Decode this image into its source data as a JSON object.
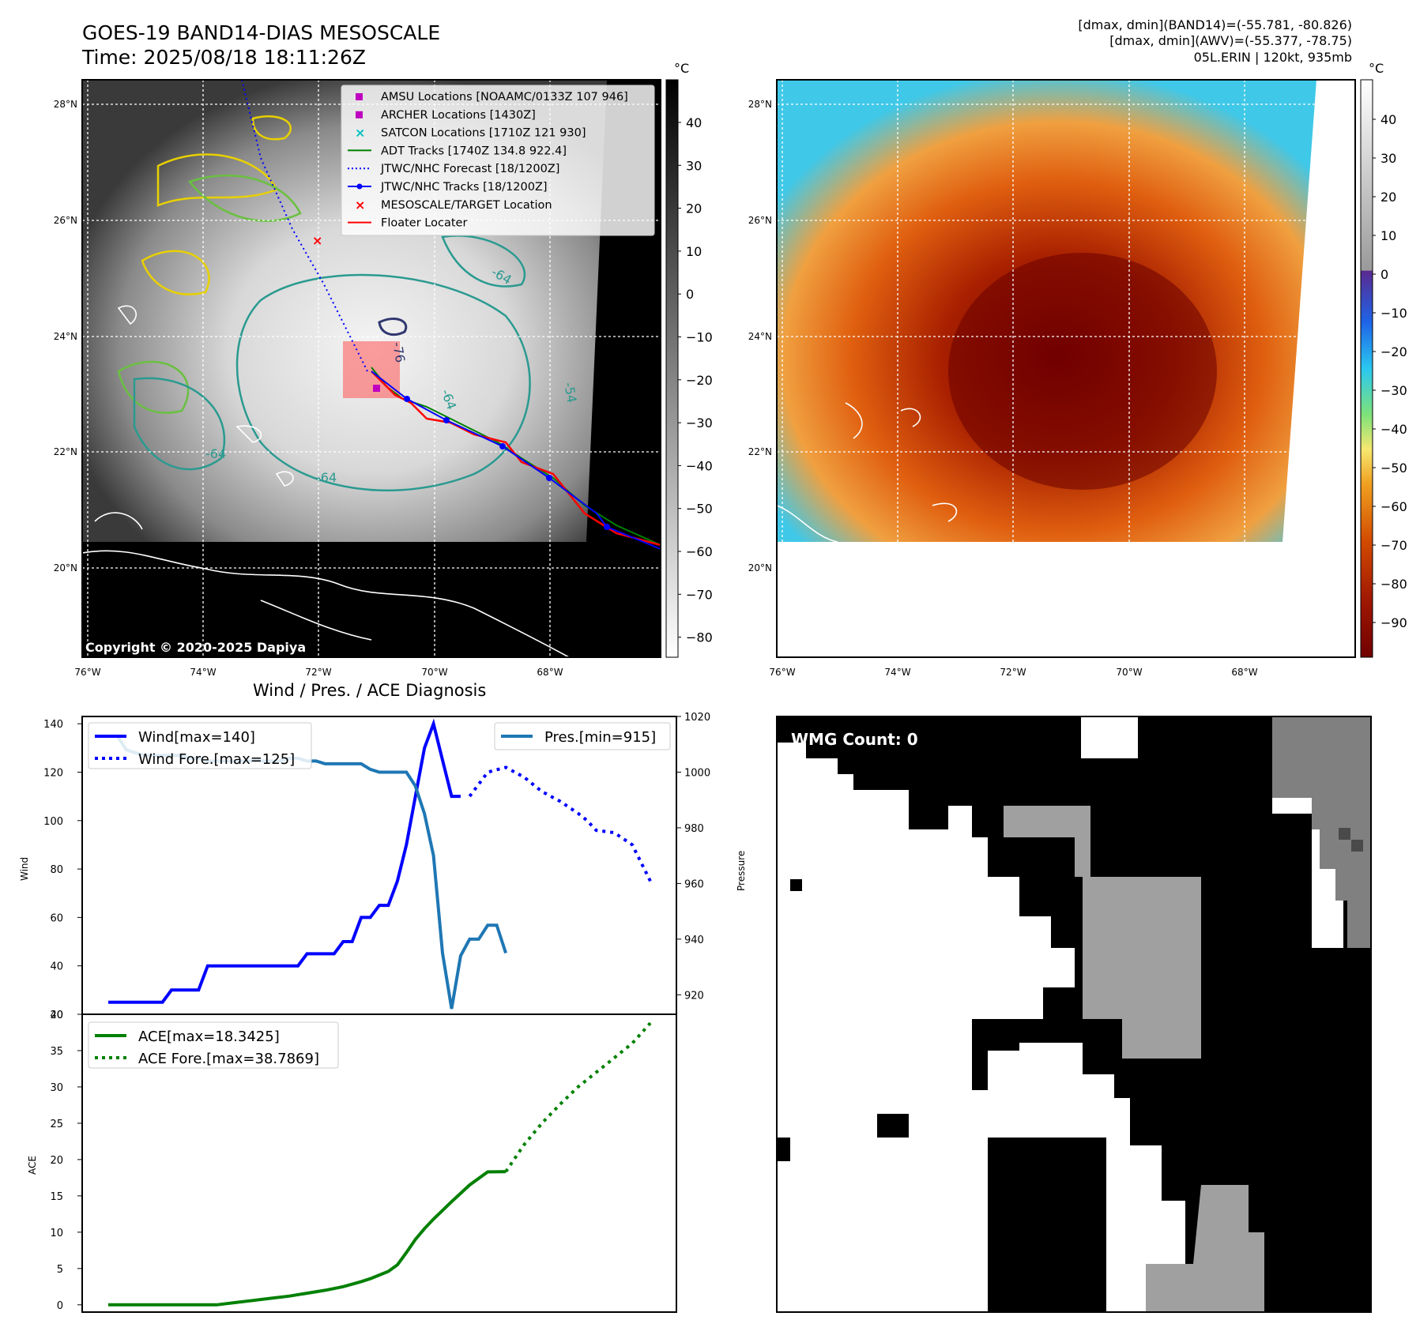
{
  "header": {
    "title": "GOES-19 BAND14-DIAS MESOSCALE",
    "time": "Time: 2025/08/18 18:11:26Z",
    "stats": [
      "[dmax, dmin](BAND14)=(-55.781, -80.826)",
      "[dmax, dmin](AWV)=(-55.377, -78.75)",
      "05L.ERIN | 120kt, 935mb"
    ]
  },
  "map": {
    "lat_labels": [
      "28°N",
      "26°N",
      "24°N",
      "22°N",
      "20°N"
    ],
    "lon_labels": [
      "76°W",
      "74°W",
      "72°W",
      "70°W",
      "68°W"
    ],
    "copyright": "Copyright © 2020-2025 Dapiya",
    "colorbar_unit": "°C",
    "legend": [
      {
        "label": "AMSU Locations [NOAAMC/0133Z 107 946]",
        "color": "#c000c0",
        "marker": "square"
      },
      {
        "label": "ARCHER Locations [1430Z]",
        "color": "#c000c0",
        "marker": "square"
      },
      {
        "label": "SATCON Locations [1710Z 121 930]",
        "color": "#00c0c0",
        "marker": "x"
      },
      {
        "label": "ADT Tracks [1740Z 134.8 922.4]",
        "color": "#008000",
        "marker": "line"
      },
      {
        "label": "JTWC/NHC Forecast [18/1200Z]",
        "color": "#0000ff",
        "marker": "dotted"
      },
      {
        "label": "JTWC/NHC Tracks [18/1200Z]",
        "color": "#0000ff",
        "marker": "line-dot"
      },
      {
        "label": "MESOSCALE/TARGET Location",
        "color": "#ff0000",
        "marker": "x"
      },
      {
        "label": "Floater Locater",
        "color": "#ff0000",
        "marker": "line"
      }
    ],
    "contour_labels": [
      "-76",
      "-64",
      "-64",
      "-64",
      "-54",
      "-64"
    ],
    "gray_colorbar_ticks": [
      "40",
      "30",
      "20",
      "10",
      "0",
      "−10",
      "−20",
      "−30",
      "−40",
      "−50",
      "−60",
      "−70",
      "−80"
    ],
    "color_colorbar_ticks": [
      "40",
      "30",
      "20",
      "10",
      "0",
      "−10",
      "−20",
      "−30",
      "−40",
      "−50",
      "−60",
      "−70",
      "−80",
      "−90"
    ]
  },
  "wmg": {
    "label": "WMG Count: 0"
  },
  "chart_data": [
    {
      "type": "line",
      "title": "Wind / Pres. / ACE Diagnosis",
      "ylabel": "Wind",
      "y2label": "Pressure",
      "ylim": [
        20,
        143
      ],
      "y2lim": [
        913,
        1020
      ],
      "yticks": [
        "20",
        "40",
        "60",
        "80",
        "100",
        "120",
        "140"
      ],
      "y2ticks": [
        "920",
        "940",
        "960",
        "980",
        "1000",
        "1020"
      ],
      "legend_left": [
        "Wind[max=140]",
        "Wind Fore.[max=125]"
      ],
      "legend_right": [
        "Pres.[min=915]"
      ],
      "series": [
        {
          "name": "Wind[max=140]",
          "color": "#0000ff",
          "style": "solid",
          "x": [
            0,
            1,
            2,
            3,
            4,
            5,
            6,
            7,
            8,
            9,
            10,
            11,
            12,
            13,
            14,
            15,
            16,
            17,
            18,
            19,
            20,
            21,
            22,
            23,
            24,
            25,
            26,
            27,
            28,
            29,
            30,
            31,
            32,
            33,
            34,
            35,
            36,
            37,
            38,
            39
          ],
          "values": [
            25,
            25,
            25,
            25,
            25,
            25,
            25,
            30,
            30,
            30,
            30,
            40,
            40,
            40,
            40,
            40,
            40,
            40,
            40,
            40,
            40,
            40,
            45,
            45,
            45,
            45,
            50,
            50,
            60,
            60,
            65,
            65,
            75,
            90,
            110,
            130,
            140,
            125,
            110,
            110
          ]
        },
        {
          "name": "Wind Fore.[max=125]",
          "color": "#0000ff",
          "style": "dotted",
          "x": [
            40,
            41,
            42,
            44,
            46,
            48,
            50,
            52,
            53,
            54,
            56,
            58,
            60
          ],
          "values": [
            110,
            115,
            120,
            122,
            118,
            112,
            108,
            103,
            100,
            96,
            95,
            90,
            75
          ]
        },
        {
          "name": "Pres.[min=915]",
          "color": "#1f77b4",
          "style": "solid",
          "axis": "right",
          "x": [
            0,
            1,
            2,
            3,
            4,
            5,
            6,
            7,
            8,
            9,
            10,
            11,
            12,
            13,
            14,
            15,
            16,
            17,
            18,
            19,
            20,
            21,
            22,
            23,
            24,
            25,
            26,
            27,
            28,
            29,
            30,
            31,
            32,
            33,
            34,
            35,
            36,
            37,
            38,
            39,
            40,
            41,
            42,
            43,
            44
          ],
          "values": [
            1013,
            1013,
            1008,
            1007,
            1006,
            1006,
            1006,
            1006,
            1006,
            1005,
            1005,
            1004,
            1004,
            1004,
            1004,
            1004,
            1004,
            1004,
            1004,
            1004,
            1005,
            1005,
            1004,
            1004,
            1003,
            1003,
            1003,
            1003,
            1003,
            1001,
            1000,
            1000,
            1000,
            1000,
            995,
            985,
            970,
            935,
            915,
            934,
            940,
            940,
            945,
            945,
            935
          ]
        }
      ],
      "x_forecast_note": "forecast starts at index 44 of 60"
    },
    {
      "type": "line",
      "ylabel": "ACE",
      "ylim": [
        -1,
        40
      ],
      "yticks": [
        "0",
        "5",
        "10",
        "15",
        "20",
        "25",
        "30",
        "35",
        "40"
      ],
      "legend": [
        "ACE[max=18.3425]",
        "ACE Fore.[max=38.7869]"
      ],
      "series": [
        {
          "name": "ACE[max=18.3425]",
          "color": "#008000",
          "style": "solid",
          "x": [
            0,
            2,
            4,
            6,
            8,
            10,
            11,
            12,
            14,
            16,
            18,
            20,
            22,
            24,
            26,
            28,
            29,
            30,
            31,
            32,
            33,
            34,
            35,
            36,
            37,
            38,
            40,
            42,
            44
          ],
          "values": [
            0,
            0,
            0,
            0,
            0,
            0,
            0,
            0,
            0.3,
            0.6,
            0.9,
            1.2,
            1.6,
            2.0,
            2.5,
            3.2,
            3.6,
            4.1,
            4.6,
            5.5,
            7.2,
            9.0,
            10.5,
            11.8,
            13.0,
            14.2,
            16.5,
            18.3,
            18.34
          ]
        },
        {
          "name": "ACE Fore.[max=38.7869]",
          "color": "#008000",
          "style": "dotted",
          "x": [
            44,
            46,
            48,
            50,
            52,
            54,
            56,
            58,
            60
          ],
          "values": [
            18.34,
            22,
            25,
            27.6,
            30,
            32,
            34,
            36,
            38.79
          ]
        }
      ]
    }
  ]
}
